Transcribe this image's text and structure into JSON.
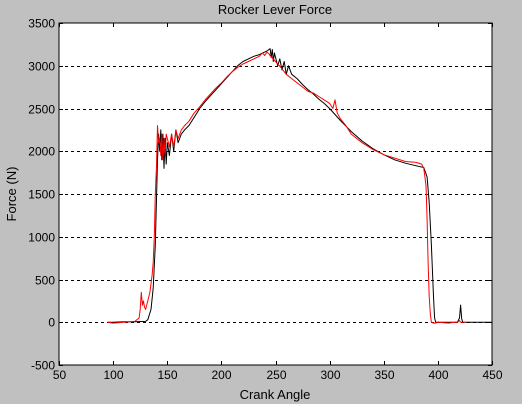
{
  "chart_data": {
    "type": "line",
    "title": "Rocker Lever Force",
    "xlabel": "Crank Angle",
    "ylabel": "Force (N)",
    "xlim": [
      50,
      450
    ],
    "ylim": [
      -500,
      3500
    ],
    "xticks": [
      50,
      100,
      150,
      200,
      250,
      300,
      350,
      400,
      450
    ],
    "yticks": [
      -500,
      0,
      500,
      1000,
      1500,
      2000,
      2500,
      3000,
      3500
    ],
    "grid": "horizontal dashed",
    "background_color": "#c0c0c0",
    "plot_area_color": "#ffffff",
    "series": [
      {
        "color": "#000000",
        "x": [
          95,
          100,
          110,
          120,
          130,
          132,
          135,
          137,
          139,
          140,
          141,
          142,
          143,
          144,
          145,
          146,
          147,
          148,
          149,
          150,
          152,
          154,
          156,
          158,
          160,
          163,
          166,
          170,
          175,
          180,
          185,
          190,
          195,
          200,
          205,
          210,
          215,
          220,
          225,
          230,
          235,
          240,
          243,
          245,
          246,
          247,
          248,
          249,
          250,
          252,
          254,
          256,
          258,
          260,
          262,
          265,
          270,
          275,
          280,
          285,
          290,
          295,
          300,
          310,
          320,
          330,
          340,
          350,
          360,
          370,
          380,
          387,
          390,
          392,
          394,
          396,
          397,
          398,
          400,
          405,
          410,
          415,
          418,
          420,
          421,
          422,
          423,
          425,
          430,
          440,
          450
        ],
        "y": [
          0,
          0,
          5,
          5,
          10,
          30,
          150,
          400,
          900,
          1400,
          1900,
          2200,
          2000,
          2250,
          1900,
          2200,
          1800,
          2150,
          1850,
          2100,
          1950,
          2200,
          2000,
          2250,
          2100,
          2200,
          2250,
          2300,
          2400,
          2500,
          2580,
          2650,
          2720,
          2790,
          2860,
          2930,
          3000,
          3050,
          3080,
          3110,
          3130,
          3160,
          3180,
          3200,
          3100,
          3190,
          3050,
          3150,
          3100,
          3000,
          3080,
          2950,
          3050,
          2900,
          3000,
          2900,
          2850,
          2780,
          2720,
          2670,
          2610,
          2560,
          2500,
          2360,
          2230,
          2120,
          2030,
          1960,
          1900,
          1860,
          1830,
          1810,
          1700,
          1400,
          900,
          300,
          50,
          0,
          0,
          0,
          0,
          0,
          0,
          50,
          200,
          40,
          0,
          0,
          0,
          0,
          0
        ]
      },
      {
        "color": "#ff0000",
        "x": [
          95,
          100,
          110,
          120,
          124,
          125,
          126,
          127,
          128,
          129,
          130,
          132,
          134,
          136,
          137,
          138,
          139,
          140,
          141,
          142,
          143,
          144,
          145,
          146,
          147,
          148,
          149,
          150,
          152,
          154,
          156,
          158,
          160,
          163,
          166,
          170,
          175,
          180,
          185,
          190,
          195,
          200,
          205,
          210,
          215,
          220,
          225,
          230,
          235,
          238,
          240,
          242,
          244,
          246,
          248,
          250,
          255,
          260,
          265,
          270,
          275,
          280,
          285,
          290,
          295,
          300,
          303,
          305,
          307,
          310,
          315,
          320,
          330,
          340,
          350,
          360,
          370,
          380,
          385,
          387,
          389,
          390,
          391,
          392,
          393,
          394,
          396,
          398,
          400,
          410,
          415,
          418,
          420,
          421,
          423,
          425
        ],
        "y": [
          0,
          -10,
          0,
          10,
          50,
          150,
          350,
          200,
          250,
          180,
          150,
          250,
          350,
          550,
          700,
          1000,
          1500,
          1800,
          2300,
          2100,
          2150,
          1950,
          2200,
          1900,
          2150,
          1950,
          2200,
          2150,
          2050,
          2200,
          2050,
          2250,
          2150,
          2250,
          2300,
          2350,
          2450,
          2520,
          2600,
          2670,
          2740,
          2800,
          2870,
          2930,
          2980,
          3020,
          3050,
          3080,
          3110,
          3150,
          3120,
          3160,
          3140,
          3100,
          3080,
          3050,
          2980,
          2900,
          2850,
          2800,
          2750,
          2700,
          2680,
          2640,
          2600,
          2560,
          2500,
          2600,
          2450,
          2380,
          2300,
          2200,
          2100,
          2020,
          1960,
          1920,
          1880,
          1870,
          1850,
          1800,
          1600,
          1200,
          700,
          300,
          100,
          0,
          -10,
          -10,
          0,
          -10,
          0,
          0,
          20,
          0,
          0,
          0
        ]
      }
    ]
  }
}
